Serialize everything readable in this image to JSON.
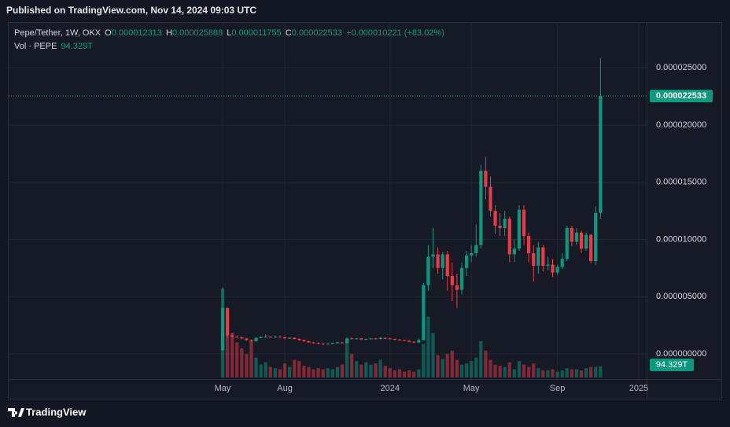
{
  "header": {
    "published": "Published on TradingView.com, Nov 14, 2024 09:03 UTC"
  },
  "chart_data": {
    "type": "candlestick",
    "symbol": "Pepe/Tether, 1W, OKX",
    "ohlc_letters": [
      "O",
      "H",
      "L",
      "C"
    ],
    "change_label": "+0.000010221 (+83.02%)",
    "volume_title": "Vol · PEPE",
    "volume_last_label": "94.329T",
    "categories": [
      "May",
      null,
      null,
      null,
      null,
      null,
      null,
      null,
      null,
      null,
      null,
      null,
      null,
      "Aug",
      null,
      null,
      null,
      null,
      null,
      null,
      null,
      null,
      null,
      null,
      null,
      null,
      null,
      null,
      null,
      null,
      null,
      null,
      null,
      null,
      null,
      "2024",
      null,
      null,
      null,
      null,
      null,
      null,
      null,
      null,
      null,
      null,
      null,
      null,
      null,
      null,
      null,
      null,
      "May",
      null,
      null,
      null,
      null,
      null,
      null,
      null,
      null,
      null,
      null,
      null,
      null,
      null,
      null,
      null,
      null,
      null,
      "Sep",
      null,
      null,
      null,
      null,
      null,
      null,
      null,
      null,
      null,
      null,
      null,
      null,
      null,
      null,
      null,
      null,
      "2025"
    ],
    "open": [
      3e-07,
      4e-06,
      1.6e-06,
      1.5e-06,
      1.45e-06,
      1.35e-06,
      1.2e-06,
      1.1e-06,
      1.4e-06,
      1.45e-06,
      1.5e-06,
      1.45e-06,
      1.5e-06,
      1.45e-06,
      1.35e-06,
      1.4e-06,
      1.3e-06,
      1.2e-06,
      1.1e-06,
      1e-06,
      9.5e-07,
      9e-07,
      8.5e-07,
      9e-07,
      9.5e-07,
      1e-06,
      9.5e-07,
      1.35e-06,
      1.3e-06,
      1.35e-06,
      1.25e-06,
      1.3e-06,
      1.35e-06,
      1.3e-06,
      1.4e-06,
      1.35e-06,
      1.3e-06,
      1.25e-06,
      1.2e-06,
      1.15e-06,
      1.05e-06,
      1e-06,
      1.2e-06,
      6e-06,
      8.5e-06,
      8.7e-06,
      7.5e-06,
      8.7e-06,
      6.8e-06,
      6e-06,
      5.6e-06,
      7.5e-06,
      8.6e-06,
      8.8e-06,
      9.5e-06,
      1.6e-05,
      1.46e-05,
      1.25e-05,
      1.12e-05,
      1.1e-05,
      1.18e-05,
      8.7e-06,
      9.2e-06,
      1.26e-05,
      1.03e-05,
      8.8e-06,
      7.7e-06,
      9.3e-06,
      7.7e-06,
      7.8e-06,
      7.1e-06,
      7.6e-06,
      8.3e-06,
      1.1e-05,
      9.8e-06,
      1.06e-05,
      9.2e-06,
      1.04e-05,
      8.1e-06,
      1.2313e-05,
      null,
      null,
      null,
      null,
      null,
      null,
      null,
      null
    ],
    "high": [
      5.8e-06,
      4.1e-06,
      1.8e-06,
      1.6e-06,
      1.5e-06,
      1.4e-06,
      1.25e-06,
      1.45e-06,
      1.55e-06,
      1.7e-06,
      1.55e-06,
      1.6e-06,
      1.55e-06,
      1.5e-06,
      1.45e-06,
      1.45e-06,
      1.35e-06,
      1.25e-06,
      1.15e-06,
      1.05e-06,
      1e-06,
      9.5e-07,
      9.5e-07,
      1e-06,
      1.05e-06,
      1.05e-06,
      1.45e-06,
      1.45e-06,
      1.4e-06,
      1.4e-06,
      1.35e-06,
      1.4e-06,
      1.4e-06,
      1.5e-06,
      1.45e-06,
      1.4e-06,
      1.35e-06,
      1.3e-06,
      1.25e-06,
      1.2e-06,
      1.1e-06,
      1.35e-06,
      6.2e-06,
      9.5e-06,
      1.1e-05,
      9.3e-06,
      8.9e-06,
      9e-06,
      8e-06,
      7e-06,
      8e-06,
      9e-06,
      9.5e-06,
      1.13e-05,
      1.65e-05,
      1.72e-05,
      1.55e-05,
      1.3e-05,
      1.23e-05,
      1.25e-05,
      1.2e-05,
      1e-05,
      1.3e-05,
      1.3e-05,
      1.06e-05,
      9.5e-06,
      9.8e-06,
      9.5e-06,
      8.5e-06,
      8.3e-06,
      7.8e-06,
      8.8e-06,
      1.12e-05,
      1.12e-05,
      1.1e-05,
      1.08e-05,
      1.06e-05,
      1.05e-05,
      1.29e-05,
      2.5888e-05,
      null,
      null,
      null,
      null,
      null,
      null,
      null,
      null
    ],
    "low": [
      3e-07,
      1.4e-06,
      1.4e-06,
      1.4e-06,
      1.3e-06,
      1.15e-06,
      1.05e-06,
      1.05e-06,
      1.35e-06,
      1.4e-06,
      1.4e-06,
      1.4e-06,
      1.4e-06,
      1.3e-06,
      1.3e-06,
      1.25e-06,
      1.15e-06,
      1.05e-06,
      9.5e-07,
      9e-07,
      8.5e-07,
      8e-07,
      8e-07,
      8.5e-07,
      9e-07,
      9e-07,
      9e-07,
      1.25e-06,
      1.25e-06,
      1.2e-06,
      1.2e-06,
      1.25e-06,
      1.25e-06,
      1.25e-06,
      1.3e-06,
      1.25e-06,
      1.2e-06,
      1.15e-06,
      1.1e-06,
      1e-06,
      9.5e-07,
      9.5e-07,
      1.15e-06,
      5.5e-06,
      7.5e-06,
      7e-06,
      6.5e-06,
      5.5e-06,
      4.6e-06,
      4e-06,
      5.2e-06,
      6.8e-06,
      8e-06,
      8.5e-06,
      9.2e-06,
      1.35e-05,
      1.2e-05,
      1.05e-05,
      1.03e-05,
      1.03e-05,
      8e-06,
      8e-06,
      9e-06,
      9.5e-06,
      8e-06,
      6.3e-06,
      7e-06,
      7.2e-06,
      7.3e-06,
      6.7e-06,
      6.9e-06,
      7.4e-06,
      8.1e-06,
      9.4e-06,
      9.5e-06,
      8.8e-06,
      9e-06,
      7.9e-06,
      7.8e-06,
      1.1755e-05,
      null,
      null,
      null,
      null,
      null,
      null,
      null,
      null
    ],
    "close": [
      4e-06,
      1.6e-06,
      1.5e-06,
      1.45e-06,
      1.35e-06,
      1.2e-06,
      1.1e-06,
      1.4e-06,
      1.45e-06,
      1.5e-06,
      1.45e-06,
      1.5e-06,
      1.45e-06,
      1.35e-06,
      1.4e-06,
      1.3e-06,
      1.2e-06,
      1.1e-06,
      1e-06,
      9.5e-07,
      9e-07,
      8.5e-07,
      9e-07,
      9.5e-07,
      1e-06,
      9.5e-07,
      1.35e-06,
      1.3e-06,
      1.35e-06,
      1.25e-06,
      1.3e-06,
      1.35e-06,
      1.3e-06,
      1.4e-06,
      1.35e-06,
      1.3e-06,
      1.25e-06,
      1.2e-06,
      1.15e-06,
      1.05e-06,
      1e-06,
      1.2e-06,
      6e-06,
      8.5e-06,
      8.7e-06,
      7.5e-06,
      8.7e-06,
      6.8e-06,
      6e-06,
      5.6e-06,
      7.5e-06,
      8.6e-06,
      8.8e-06,
      9.5e-06,
      1.6e-05,
      1.46e-05,
      1.25e-05,
      1.12e-05,
      1.1e-05,
      1.18e-05,
      8.7e-06,
      9.2e-06,
      1.26e-05,
      1.03e-05,
      8.8e-06,
      7.7e-06,
      9.3e-06,
      7.7e-06,
      7.8e-06,
      7.1e-06,
      7.6e-06,
      8.3e-06,
      1.1e-05,
      9.8e-06,
      1.06e-05,
      9.2e-06,
      1.04e-05,
      8.1e-06,
      1.2313e-05,
      2.2533e-05,
      null,
      null,
      null,
      null,
      null,
      null,
      null,
      null
    ],
    "volume": [
      760,
      560,
      380,
      300,
      250,
      200,
      310,
      170,
      110,
      130,
      90,
      80,
      70,
      120,
      90,
      150,
      140,
      100,
      90,
      70,
      80,
      70,
      80,
      70,
      90,
      110,
      330,
      200,
      140,
      110,
      130,
      110,
      120,
      150,
      100,
      80,
      60,
      70,
      50,
      60,
      50,
      70,
      290,
      520,
      380,
      190,
      160,
      200,
      230,
      150,
      110,
      120,
      140,
      170,
      310,
      230,
      150,
      110,
      100,
      90,
      130,
      70,
      140,
      110,
      90,
      120,
      80,
      60,
      60,
      70,
      50,
      60,
      80,
      70,
      70,
      60,
      80,
      90,
      90,
      94.329,
      null,
      null,
      null,
      null,
      null,
      null,
      null,
      null
    ],
    "up_color": "#089981",
    "down_color": "#f23645",
    "ylim": [
      -2.2e-06,
      2.9e-05
    ],
    "yticks": [
      {
        "value": 0,
        "label": "0.000000000"
      },
      {
        "value": 5e-06,
        "label": "0.000005000"
      },
      {
        "value": 1e-05,
        "label": "0.000010000"
      },
      {
        "value": 1.5e-05,
        "label": "0.000015000"
      },
      {
        "value": 2e-05,
        "label": "0.000020000"
      },
      {
        "value": 2.5e-05,
        "label": "0.000025000"
      }
    ],
    "grid": true
  },
  "footer": {
    "brand": "TradingView"
  }
}
